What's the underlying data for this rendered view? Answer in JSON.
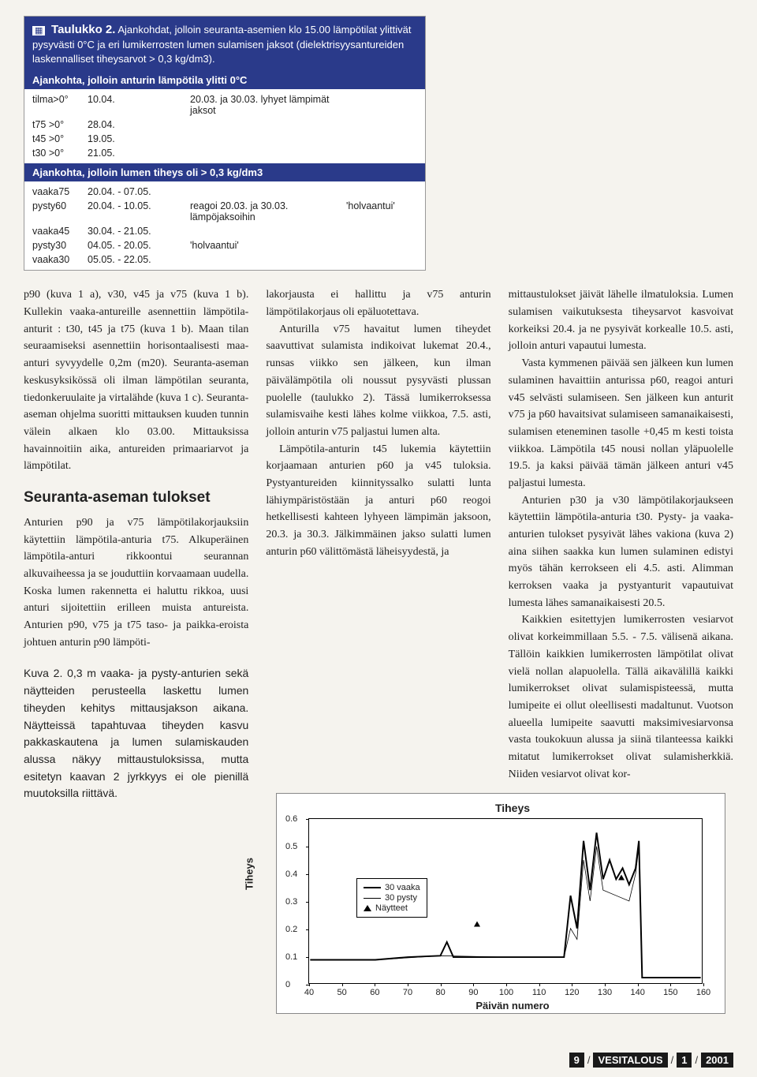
{
  "table": {
    "title_lead": "Taulukko 2.",
    "title_rest": "Ajankohdat, jolloin seuranta-asemien klo 15.00 lämpötilat ylittivät pysyvästi 0°C ja eri lumikerrosten lumen sulamisen jaksot (dielektrisyysantureiden laskennalliset tiheysarvot > 0,3 kg/dm3).",
    "sub1": "Ajankohta, jolloin anturin lämpötila ylitti 0°C",
    "sec1": [
      {
        "c1": "tilma>0°",
        "c2": "10.04.",
        "c3": "20.03. ja 30.03. lyhyet lämpimät jaksot",
        "c4": ""
      },
      {
        "c1": "t75 >0°",
        "c2": "28.04.",
        "c3": "",
        "c4": ""
      },
      {
        "c1": "t45 >0°",
        "c2": "19.05.",
        "c3": "",
        "c4": ""
      },
      {
        "c1": "t30 >0°",
        "c2": "21.05.",
        "c3": "",
        "c4": ""
      }
    ],
    "sub2": "Ajankohta, jolloin lumen tiheys oli > 0,3 kg/dm3",
    "sec2": [
      {
        "c1": "vaaka75",
        "c2": "20.04. - 07.05.",
        "c3": "",
        "c4": ""
      },
      {
        "c1": "pysty60",
        "c2": "20.04. - 10.05.",
        "c3": "reagoi 20.03. ja 30.03. lämpöjaksoihin",
        "c4": "'holvaantui'"
      },
      {
        "c1": "vaaka45",
        "c2": "30.04. - 21.05.",
        "c3": "",
        "c4": ""
      },
      {
        "c1": "pysty30",
        "c2": "04.05. - 20.05.",
        "c3": "'holvaantui'",
        "c4": ""
      },
      {
        "c1": "vaaka30",
        "c2": "05.05. - 22.05.",
        "c3": "",
        "c4": ""
      }
    ]
  },
  "col1": {
    "p1": "p90 (kuva 1 a), v30, v45 ja v75 (kuva 1 b). Kullekin vaaka-antureille asennettiin lämpötila-anturit : t30, t45 ja t75 (kuva 1 b). Maan tilan seuraamiseksi asennettiin horisontaalisesti maa-anturi syvyydelle 0,2m (m20). Seuranta-aseman keskusyksikössä oli ilman lämpötilan seuranta, tiedonkeruulaite ja virtalähde (kuva 1 c). Seuranta-aseman ohjelma suoritti mittauksen kuuden tunnin välein alkaen klo 03.00. Mittauksissa havainnoitiin aika, antureiden primaariarvot ja lämpötilat.",
    "heading": "Seuranta-aseman tulokset",
    "p2": "Anturien p90 ja v75 lämpötilakorjauksiin käytettiin lämpötila-anturia t75. Alkuperäinen lämpötila-anturi rikkoontui seurannan alkuvaiheessa ja se jouduttiin korvaamaan uudella. Koska lumen rakennetta ei haluttu rikkoa, uusi anturi sijoitettiin erilleen muista antureista. Anturien p90, v75 ja t75 taso- ja paikka-eroista johtuen anturin p90 lämpöti-",
    "caption": "Kuva 2. 0,3 m vaaka- ja pysty-anturien sekä näytteiden perusteella laskettu lumen tiheyden kehitys mittausjakson aikana. Näytteissä tapahtuvaa tiheyden kasvu pakkaskautena ja lumen sulamiskauden alussa näkyy mittaustuloksissa, mutta esitetyn kaavan 2 jyrkkyys ei ole pienillä muutoksilla riittävä."
  },
  "col2": {
    "p1": "lakorjausta ei hallittu ja v75 anturin lämpötilakorjaus oli epäluotettava.",
    "p2": "Anturilla v75 havaitut lumen tiheydet saavuttivat sulamista indikoivat lukemat 20.4., runsas viikko sen jälkeen, kun ilman päivälämpötila oli noussut pysyvästi plussan puolelle (taulukko 2). Tässä lumikerroksessa sulamisvaihe kesti lähes kolme viikkoa, 7.5. asti, jolloin anturin v75 paljastui lumen alta.",
    "p3": "Lämpötila-anturin t45 lukemia käytettiin korjaamaan anturien p60 ja v45 tuloksia. Pystyantureiden kiinnityssalko sulatti lunta lähiympäristöstään ja anturi p60 reogoi hetkellisesti kahteen lyhyeen lämpimän jaksoon, 20.3. ja 30.3. Jälkimmäinen jakso sulatti lumen anturin p60 välittömästä läheisyydestä, ja"
  },
  "col3": {
    "p1": "mittaustulokset jäivät lähelle ilmatuloksia. Lumen sulamisen vaikutuksesta tiheysarvot kasvoivat korkeiksi 20.4. ja ne pysyivät korkealle 10.5. asti, jolloin anturi vapautui lumesta.",
    "p2": "Vasta kymmenen päivää sen jälkeen kun lumen sulaminen havaittiin anturissa p60, reagoi anturi v45 selvästi sulamiseen. Sen jälkeen kun anturit v75 ja p60 havaitsivat sulamiseen samanaikaisesti, sulamisen eteneminen tasolle +0,45 m kesti toista viikkoa. Lämpötila t45 nousi nollan yläpuolelle 19.5. ja kaksi päivää tämän jälkeen anturi v45 paljastui lumesta.",
    "p3": "Anturien p30 ja v30 lämpötilakorjaukseen käytettiin lämpötila-anturia t30. Pysty- ja vaaka-anturien tulokset pysyivät lähes vakiona (kuva 2) aina siihen saakka kun lumen sulaminen edistyi myös tähän kerrokseen eli 4.5. asti. Alimman kerroksen vaaka ja pystyanturit vapautuivat lumesta lähes samanaikaisesti 20.5.",
    "p4": "Kaikkien esitettyjen lumikerrosten vesiarvot olivat korkeimmillaan 5.5. - 7.5. välisenä aikana. Tällöin kaikkien lumikerrosten lämpötilat olivat vielä nollan alapuolella. Tällä aikavälillä kaikki lumikerrokset olivat sulamispisteessä, mutta lumipeite ei ollut oleellisesti madaltunut. Vuotson alueella lumipeite saavutti maksimivesiarvonsa vasta toukokuun alussa ja siinä tilanteessa kaikki mitatut lumikerrokset olivat sulamisherkkiä. Niiden vesiarvot olivat kor-"
  },
  "chart": {
    "title": "Tiheys",
    "ylabel": "Tiheys",
    "xlabel": "Päivän numero",
    "ylim": [
      0,
      0.6
    ],
    "xlim": [
      40,
      160
    ],
    "yticks": [
      0,
      0.1,
      0.2,
      0.3,
      0.4,
      0.5,
      0.6
    ],
    "xticks": [
      40,
      50,
      60,
      70,
      80,
      90,
      100,
      110,
      120,
      130,
      140,
      150,
      160
    ],
    "legend": [
      {
        "type": "thick",
        "label": "30 vaaka"
      },
      {
        "type": "thin",
        "label": "30 pysty"
      },
      {
        "type": "tri",
        "label": "Näytteet"
      }
    ],
    "series_vaaka": [
      [
        40,
        0.085
      ],
      [
        50,
        0.085
      ],
      [
        60,
        0.085
      ],
      [
        70,
        0.095
      ],
      [
        80,
        0.1
      ],
      [
        82,
        0.15
      ],
      [
        84,
        0.095
      ],
      [
        90,
        0.095
      ],
      [
        100,
        0.095
      ],
      [
        110,
        0.095
      ],
      [
        118,
        0.095
      ],
      [
        120,
        0.32
      ],
      [
        122,
        0.2
      ],
      [
        124,
        0.52
      ],
      [
        126,
        0.34
      ],
      [
        128,
        0.55
      ],
      [
        130,
        0.38
      ],
      [
        132,
        0.45
      ],
      [
        134,
        0.38
      ],
      [
        136,
        0.42
      ],
      [
        138,
        0.36
      ],
      [
        140,
        0.42
      ],
      [
        141,
        0.52
      ],
      [
        142,
        0.02
      ],
      [
        160,
        0.02
      ]
    ],
    "series_pysty": [
      [
        40,
        0.085
      ],
      [
        60,
        0.085
      ],
      [
        80,
        0.1
      ],
      [
        100,
        0.095
      ],
      [
        118,
        0.095
      ],
      [
        120,
        0.2
      ],
      [
        122,
        0.16
      ],
      [
        124,
        0.45
      ],
      [
        126,
        0.3
      ],
      [
        128,
        0.5
      ],
      [
        130,
        0.34
      ],
      [
        134,
        0.32
      ],
      [
        138,
        0.3
      ],
      [
        140,
        0.4
      ],
      [
        141,
        0.5
      ],
      [
        142,
        0.02
      ],
      [
        160,
        0.02
      ]
    ],
    "markers": [
      {
        "x": 91,
        "y": 0.22
      },
      {
        "x": 135,
        "y": 0.39
      }
    ]
  },
  "footer": {
    "page": "9",
    "journal": "VESITALOUS",
    "issue": "1",
    "year": "2001"
  }
}
